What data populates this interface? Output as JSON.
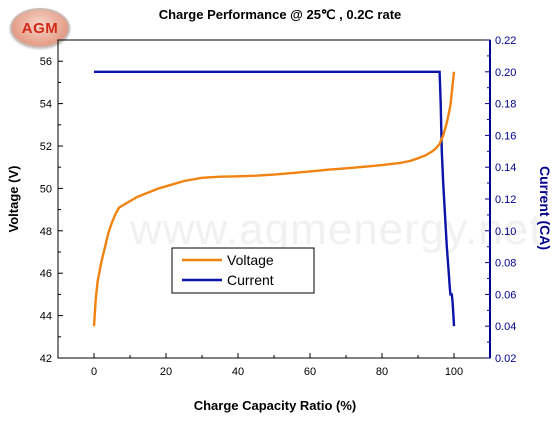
{
  "logo": {
    "text": "AGM"
  },
  "watermark": "www.agmenergy.net",
  "chart_data": {
    "type": "line",
    "title": "Charge Performance @ 25℃ , 0.2C rate",
    "xlabel": "Charge Capacity Ratio (%)",
    "ylabel_left": "Voltage (V)",
    "ylabel_right": "Current (CA)",
    "xlim": [
      -10,
      110
    ],
    "ylim_left": [
      42,
      57
    ],
    "ylim_right": [
      0.02,
      0.22
    ],
    "x_ticks": [
      "0",
      "20",
      "40",
      "60",
      "80",
      "100"
    ],
    "y_left_ticks": [
      "42",
      "44",
      "46",
      "48",
      "50",
      "52",
      "54",
      "56"
    ],
    "y_right_ticks": [
      "0.02",
      "0.04",
      "0.06",
      "0.08",
      "0.10",
      "0.12",
      "0.14",
      "0.16",
      "0.18",
      "0.20",
      "0.22"
    ],
    "legend": {
      "placement": "center-left"
    },
    "colors": {
      "voltage": "#f0820f",
      "current": "#0a14a8",
      "right_axis": "#00008b"
    },
    "series": [
      {
        "name": "Voltage",
        "axis": "left",
        "x": [
          0,
          0.5,
          1,
          2,
          3,
          4,
          5,
          6,
          7,
          8,
          10,
          12,
          15,
          18,
          20,
          25,
          30,
          35,
          40,
          45,
          50,
          55,
          60,
          65,
          70,
          75,
          80,
          85,
          88,
          90,
          92,
          94,
          95,
          96,
          97,
          98,
          99,
          99.5,
          100
        ],
        "y": [
          43.5,
          44.8,
          45.6,
          46.5,
          47.2,
          47.9,
          48.4,
          48.8,
          49.1,
          49.2,
          49.4,
          49.6,
          49.8,
          50.0,
          50.1,
          50.35,
          50.5,
          50.55,
          50.57,
          50.6,
          50.65,
          50.72,
          50.8,
          50.88,
          50.95,
          51.02,
          51.1,
          51.2,
          51.3,
          51.42,
          51.55,
          51.75,
          51.9,
          52.1,
          52.5,
          53.1,
          53.9,
          54.7,
          55.5
        ]
      },
      {
        "name": "Current",
        "axis": "right",
        "x": [
          0,
          20,
          40,
          60,
          80,
          96,
          96.3,
          96.6,
          97,
          97.5,
          98,
          98.5,
          98.8,
          99,
          99.2,
          99.4,
          99.6,
          99.8,
          100
        ],
        "y": [
          0.2,
          0.2,
          0.2,
          0.2,
          0.2,
          0.2,
          0.18,
          0.15,
          0.13,
          0.11,
          0.09,
          0.075,
          0.065,
          0.06,
          0.06,
          0.06,
          0.055,
          0.048,
          0.04
        ]
      }
    ]
  }
}
